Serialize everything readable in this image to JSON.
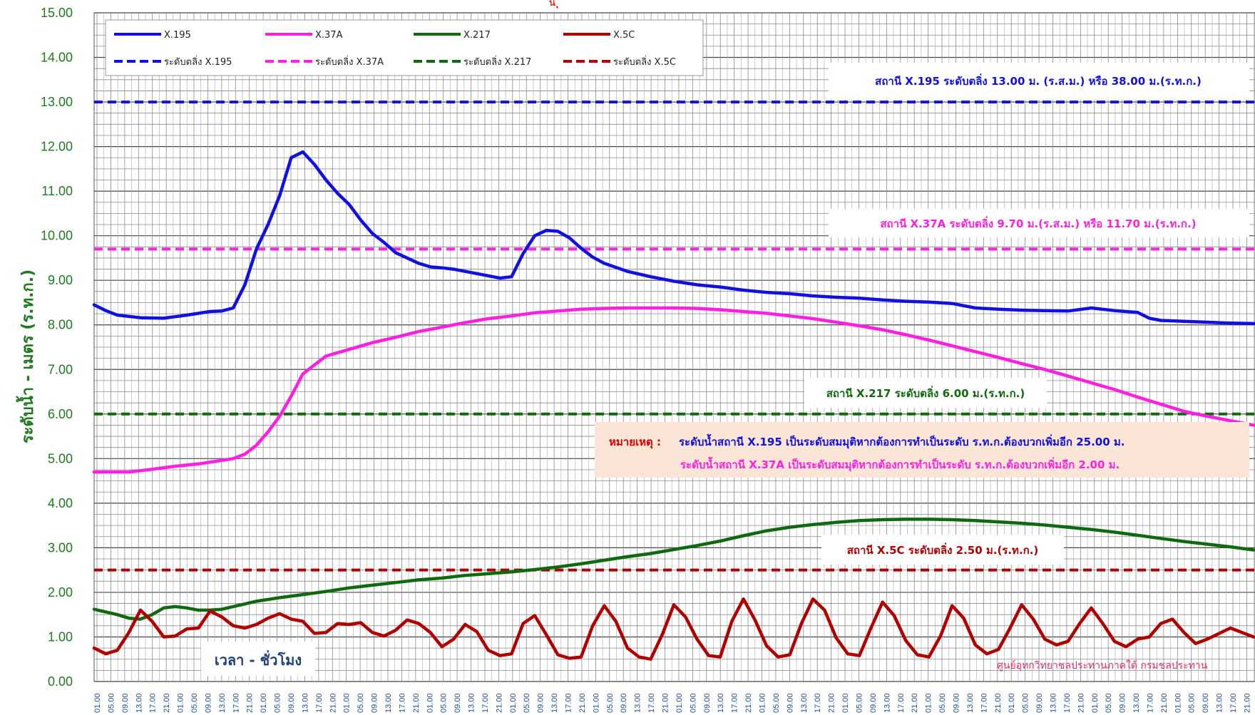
{
  "chart_data": {
    "type": "line",
    "title": "",
    "xlabel": "เวลา - ชั่วโมง",
    "ylabel": "ระดับน้ำ - เมตร (ร.ท.ก.)",
    "ylim": [
      0,
      15
    ],
    "y_ticks": [
      "0.00",
      "1.00",
      "2.00",
      "3.00",
      "4.00",
      "5.00",
      "6.00",
      "7.00",
      "8.00",
      "9.00",
      "10.00",
      "11.00",
      "12.00",
      "13.00",
      "14.00",
      "15.00"
    ],
    "x_tick_cycle": [
      "01.00",
      "05.00",
      "09.00",
      "13.00",
      "17.00",
      "21.00"
    ],
    "x_tick_count": 84,
    "grid": true,
    "legend_placement": "top-left",
    "series": [
      {
        "name": "X.195",
        "color": "#1010e0",
        "style": "solid",
        "points": [
          [
            0,
            8.45
          ],
          [
            1,
            8.32
          ],
          [
            2,
            8.22
          ],
          [
            4,
            8.16
          ],
          [
            6,
            8.15
          ],
          [
            8,
            8.22
          ],
          [
            10,
            8.3
          ],
          [
            11,
            8.31
          ],
          [
            12,
            8.38
          ],
          [
            13,
            8.9
          ],
          [
            14,
            9.7
          ],
          [
            15,
            10.25
          ],
          [
            16,
            10.9
          ],
          [
            17,
            11.75
          ],
          [
            18,
            11.88
          ],
          [
            19,
            11.6
          ],
          [
            20,
            11.25
          ],
          [
            21,
            10.95
          ],
          [
            22,
            10.7
          ],
          [
            23,
            10.35
          ],
          [
            24,
            10.05
          ],
          [
            25,
            9.85
          ],
          [
            26,
            9.62
          ],
          [
            27,
            9.5
          ],
          [
            28,
            9.38
          ],
          [
            29,
            9.3
          ],
          [
            30,
            9.28
          ],
          [
            31,
            9.25
          ],
          [
            32,
            9.2
          ],
          [
            33,
            9.15
          ],
          [
            34,
            9.1
          ],
          [
            35,
            9.05
          ],
          [
            36,
            9.08
          ],
          [
            37,
            9.6
          ],
          [
            38,
            10.0
          ],
          [
            39,
            10.12
          ],
          [
            40,
            10.1
          ],
          [
            41,
            9.95
          ],
          [
            42,
            9.72
          ],
          [
            43,
            9.52
          ],
          [
            44,
            9.38
          ],
          [
            46,
            9.2
          ],
          [
            48,
            9.08
          ],
          [
            50,
            8.98
          ],
          [
            52,
            8.9
          ],
          [
            54,
            8.85
          ],
          [
            56,
            8.78
          ],
          [
            58,
            8.73
          ],
          [
            60,
            8.7
          ],
          [
            62,
            8.65
          ],
          [
            64,
            8.62
          ],
          [
            66,
            8.6
          ],
          [
            68,
            8.56
          ],
          [
            70,
            8.53
          ],
          [
            72,
            8.51
          ],
          [
            74,
            8.48
          ],
          [
            76,
            8.38
          ],
          [
            78,
            8.35
          ],
          [
            80,
            8.33
          ],
          [
            82,
            8.32
          ],
          [
            84,
            8.31
          ],
          [
            86,
            8.38
          ],
          [
            88,
            8.32
          ],
          [
            90,
            8.28
          ],
          [
            91,
            8.15
          ],
          [
            92,
            8.1
          ],
          [
            94,
            8.08
          ],
          [
            96,
            8.06
          ],
          [
            98,
            8.04
          ],
          [
            100,
            8.03
          ],
          [
            105,
            8.0
          ],
          [
            110,
            7.98
          ],
          [
            115,
            7.97
          ],
          [
            120,
            7.96
          ],
          [
            125,
            7.95
          ]
        ]
      },
      {
        "name": "X.37A",
        "color": "#ff1fe0",
        "style": "solid",
        "points": [
          [
            0,
            4.7
          ],
          [
            3,
            4.7
          ],
          [
            5,
            4.76
          ],
          [
            7,
            4.83
          ],
          [
            9,
            4.88
          ],
          [
            11,
            4.96
          ],
          [
            12,
            5.0
          ],
          [
            13,
            5.1
          ],
          [
            14,
            5.3
          ],
          [
            15,
            5.6
          ],
          [
            16,
            5.95
          ],
          [
            17,
            6.4
          ],
          [
            18,
            6.9
          ],
          [
            19,
            7.1
          ],
          [
            20,
            7.3
          ],
          [
            22,
            7.45
          ],
          [
            24,
            7.6
          ],
          [
            26,
            7.72
          ],
          [
            28,
            7.85
          ],
          [
            30,
            7.95
          ],
          [
            32,
            8.05
          ],
          [
            34,
            8.14
          ],
          [
            36,
            8.2
          ],
          [
            38,
            8.27
          ],
          [
            40,
            8.31
          ],
          [
            42,
            8.35
          ],
          [
            44,
            8.37
          ],
          [
            46,
            8.38
          ],
          [
            48,
            8.38
          ],
          [
            50,
            8.38
          ],
          [
            52,
            8.37
          ],
          [
            54,
            8.34
          ],
          [
            56,
            8.3
          ],
          [
            58,
            8.26
          ],
          [
            60,
            8.2
          ],
          [
            62,
            8.14
          ],
          [
            64,
            8.06
          ],
          [
            66,
            7.98
          ],
          [
            68,
            7.89
          ],
          [
            70,
            7.78
          ],
          [
            72,
            7.66
          ],
          [
            74,
            7.53
          ],
          [
            76,
            7.4
          ],
          [
            78,
            7.27
          ],
          [
            80,
            7.13
          ],
          [
            82,
            7.0
          ],
          [
            84,
            6.85
          ],
          [
            86,
            6.7
          ],
          [
            88,
            6.55
          ],
          [
            90,
            6.38
          ],
          [
            92,
            6.22
          ],
          [
            94,
            6.06
          ],
          [
            96,
            5.95
          ],
          [
            98,
            5.85
          ],
          [
            100,
            5.75
          ]
        ]
      },
      {
        "name": "X.217",
        "color": "#0f6a0f",
        "style": "solid",
        "points": [
          [
            0,
            1.62
          ],
          [
            2,
            1.5
          ],
          [
            3,
            1.42
          ],
          [
            4,
            1.4
          ],
          [
            5,
            1.5
          ],
          [
            6,
            1.65
          ],
          [
            7,
            1.68
          ],
          [
            8,
            1.65
          ],
          [
            9,
            1.6
          ],
          [
            10,
            1.6
          ],
          [
            11,
            1.62
          ],
          [
            12,
            1.68
          ],
          [
            14,
            1.8
          ],
          [
            16,
            1.88
          ],
          [
            18,
            1.95
          ],
          [
            20,
            2.02
          ],
          [
            22,
            2.1
          ],
          [
            24,
            2.16
          ],
          [
            26,
            2.22
          ],
          [
            28,
            2.28
          ],
          [
            30,
            2.32
          ],
          [
            32,
            2.38
          ],
          [
            34,
            2.42
          ],
          [
            36,
            2.46
          ],
          [
            38,
            2.51
          ],
          [
            40,
            2.57
          ],
          [
            42,
            2.64
          ],
          [
            44,
            2.72
          ],
          [
            46,
            2.8
          ],
          [
            48,
            2.87
          ],
          [
            50,
            2.96
          ],
          [
            52,
            3.05
          ],
          [
            54,
            3.15
          ],
          [
            56,
            3.27
          ],
          [
            58,
            3.38
          ],
          [
            60,
            3.46
          ],
          [
            62,
            3.52
          ],
          [
            64,
            3.57
          ],
          [
            66,
            3.61
          ],
          [
            68,
            3.63
          ],
          [
            70,
            3.64
          ],
          [
            72,
            3.64
          ],
          [
            74,
            3.63
          ],
          [
            76,
            3.61
          ],
          [
            78,
            3.58
          ],
          [
            80,
            3.55
          ],
          [
            82,
            3.51
          ],
          [
            84,
            3.46
          ],
          [
            86,
            3.41
          ],
          [
            88,
            3.35
          ],
          [
            90,
            3.28
          ],
          [
            92,
            3.21
          ],
          [
            94,
            3.14
          ],
          [
            96,
            3.08
          ],
          [
            98,
            3.02
          ],
          [
            100,
            2.95
          ]
        ]
      },
      {
        "name": "X.5C",
        "color": "#b00000",
        "style": "solid",
        "points": [
          [
            0,
            0.75
          ],
          [
            1,
            0.62
          ],
          [
            2,
            0.7
          ],
          [
            3,
            1.1
          ],
          [
            4,
            1.6
          ],
          [
            5,
            1.35
          ],
          [
            6,
            1.0
          ],
          [
            7,
            1.02
          ],
          [
            8,
            1.18
          ],
          [
            9,
            1.2
          ],
          [
            10,
            1.58
          ],
          [
            11,
            1.45
          ],
          [
            12,
            1.25
          ],
          [
            13,
            1.2
          ],
          [
            14,
            1.28
          ],
          [
            15,
            1.42
          ],
          [
            16,
            1.52
          ],
          [
            17,
            1.4
          ],
          [
            18,
            1.35
          ],
          [
            19,
            1.08
          ],
          [
            20,
            1.1
          ],
          [
            21,
            1.3
          ],
          [
            22,
            1.28
          ],
          [
            23,
            1.32
          ],
          [
            24,
            1.1
          ],
          [
            25,
            1.02
          ],
          [
            26,
            1.15
          ],
          [
            27,
            1.38
          ],
          [
            28,
            1.3
          ],
          [
            29,
            1.1
          ],
          [
            30,
            0.78
          ],
          [
            31,
            0.95
          ],
          [
            32,
            1.28
          ],
          [
            33,
            1.12
          ],
          [
            34,
            0.7
          ],
          [
            35,
            0.58
          ],
          [
            36,
            0.62
          ],
          [
            37,
            1.3
          ],
          [
            38,
            1.48
          ],
          [
            39,
            1.05
          ],
          [
            40,
            0.6
          ],
          [
            41,
            0.52
          ],
          [
            42,
            0.55
          ],
          [
            43,
            1.25
          ],
          [
            44,
            1.7
          ],
          [
            45,
            1.35
          ],
          [
            46,
            0.75
          ],
          [
            47,
            0.55
          ],
          [
            48,
            0.5
          ],
          [
            49,
            1.05
          ],
          [
            50,
            1.72
          ],
          [
            51,
            1.45
          ],
          [
            52,
            0.95
          ],
          [
            53,
            0.58
          ],
          [
            54,
            0.55
          ],
          [
            55,
            1.35
          ],
          [
            56,
            1.85
          ],
          [
            57,
            1.38
          ],
          [
            58,
            0.8
          ],
          [
            59,
            0.55
          ],
          [
            60,
            0.6
          ],
          [
            61,
            1.3
          ],
          [
            62,
            1.85
          ],
          [
            63,
            1.6
          ],
          [
            64,
            0.98
          ],
          [
            65,
            0.62
          ],
          [
            66,
            0.58
          ],
          [
            67,
            1.2
          ],
          [
            68,
            1.78
          ],
          [
            69,
            1.48
          ],
          [
            70,
            0.92
          ],
          [
            71,
            0.6
          ],
          [
            72,
            0.55
          ],
          [
            73,
            1.02
          ],
          [
            74,
            1.7
          ],
          [
            75,
            1.42
          ],
          [
            76,
            0.82
          ],
          [
            77,
            0.62
          ],
          [
            78,
            0.72
          ],
          [
            79,
            1.2
          ],
          [
            80,
            1.72
          ],
          [
            81,
            1.4
          ],
          [
            82,
            0.95
          ],
          [
            83,
            0.82
          ],
          [
            84,
            0.9
          ],
          [
            85,
            1.3
          ],
          [
            86,
            1.65
          ],
          [
            87,
            1.3
          ],
          [
            88,
            0.9
          ],
          [
            89,
            0.78
          ],
          [
            90,
            0.95
          ],
          [
            91,
            1.0
          ],
          [
            92,
            1.3
          ],
          [
            93,
            1.4
          ],
          [
            94,
            1.1
          ],
          [
            95,
            0.85
          ],
          [
            96,
            0.95
          ],
          [
            98,
            1.2
          ],
          [
            100,
            1.0
          ]
        ]
      },
      {
        "name": "ระดับตลิ่ง X.195",
        "color": "#1010e0",
        "style": "dashed",
        "y": 13.0
      },
      {
        "name": "ระดับตลิ่ง X.37A",
        "color": "#ff1fe0",
        "style": "dashed",
        "y": 9.7
      },
      {
        "name": "ระดับตลิ่ง X.217",
        "color": "#0f6a0f",
        "style": "dashed",
        "y": 6.0
      },
      {
        "name": "ระดับตลิ่ง X.5C",
        "color": "#b00000",
        "style": "dashed",
        "y": 2.5
      }
    ],
    "annotations": {
      "x195": "สถานี X.195 ระดับตลิ่ง 13.00 ม. (ร.ส.ม.) หรือ 38.00 ม.(ร.ท.ก.)",
      "x37a": "สถานี X.37A ระดับตลิ่ง 9.70 ม.(ร.ส.ม.) หรือ 11.70 ม.(ร.ท.ก.)",
      "x217": "สถานี X.217 ระดับตลิ่ง 6.00 ม.(ร.ท.ก.)",
      "x5c": "สถานี X.5C ระดับตลิ่ง 2.50 ม.(ร.ท.ก.)",
      "note_label": "หมายเหตุ :",
      "note_line1": "ระดับน้ำสถานี X.195 เป็นระดับสมมุติหากต้องการทำเป็นระดับ ร.ท.ก.ต้องบวกเพิ่มอีก 25.00 ม.",
      "note_line2": "ระดับน้ำสถานี X.37A เป็นระดับสมมุติหากต้องการทำเป็นระดับ ร.ท.ก.ต้องบวกเพิ่มอีก 2.00 ม.",
      "credit": "ศูนย์อุทกวิทยาชลประทานภาคใต้ กรมชลประทาน",
      "title_fragment": "น ุ"
    }
  }
}
